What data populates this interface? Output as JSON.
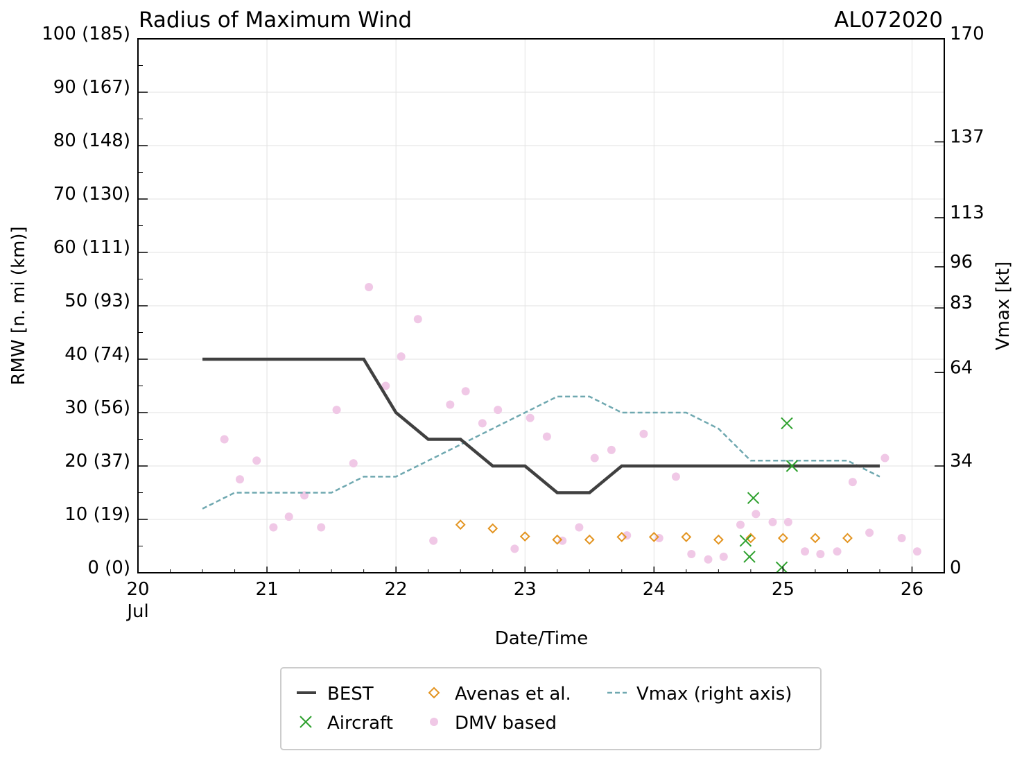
{
  "chart_data": {
    "type": "line",
    "title": "Radius of Maximum Wind",
    "storm_id": "AL072020",
    "xlabel": "Date/Time",
    "ylabel": "RMW [n. mi (km)]",
    "y2label": "Vmax [kt]",
    "xlim": [
      20,
      26.25
    ],
    "ylim": [
      0,
      100
    ],
    "x_ticks": [
      20,
      21,
      22,
      23,
      24,
      25,
      26
    ],
    "x_tick_labels": [
      "20",
      "21",
      "22",
      "23",
      "24",
      "25",
      "26"
    ],
    "x_sublabel": "Jul",
    "y_ticks": [
      0,
      10,
      20,
      30,
      40,
      50,
      60,
      70,
      80,
      90,
      100
    ],
    "y_tick_labels": [
      "0 (0)",
      "10 (19)",
      "20 (37)",
      "30 (56)",
      "40 (74)",
      "50 (93)",
      "60 (111)",
      "70 (130)",
      "80 (148)",
      "90 (167)",
      "100 (185)"
    ],
    "y2_ticks": [
      0,
      34,
      64,
      83,
      96,
      113,
      137,
      170
    ],
    "y2_tick_labels": [
      "0",
      "34",
      "64",
      "83",
      "96",
      "113",
      "137",
      "170"
    ],
    "y2_positions": [
      0,
      20,
      37.5,
      49.6,
      57.3,
      66.5,
      80.7,
      100
    ],
    "grid": true,
    "legend_position": "bottom-center",
    "legend": [
      "BEST",
      "Aircraft",
      "Avenas et al.",
      "DMV based",
      "Vmax (right axis)"
    ],
    "series": [
      {
        "name": "BEST",
        "kind": "line",
        "color": "#404040",
        "x": [
          20.5,
          20.75,
          21.0,
          21.25,
          21.5,
          21.75,
          22.0,
          22.25,
          22.5,
          22.75,
          23.0,
          23.25,
          23.5,
          23.75,
          24.0,
          24.25,
          24.5,
          24.75,
          25.0,
          25.25,
          25.5,
          25.75
        ],
        "y": [
          40,
          40,
          40,
          40,
          40,
          40,
          30,
          25,
          25,
          20,
          20,
          15,
          15,
          20,
          20,
          20,
          20,
          20,
          20,
          20,
          20,
          20
        ]
      },
      {
        "name": "Vmax (right axis)",
        "kind": "dashed-line",
        "color": "#6fa8b0",
        "x": [
          20.5,
          20.75,
          21.0,
          21.25,
          21.5,
          21.75,
          22.0,
          22.25,
          22.5,
          22.75,
          23.0,
          23.25,
          23.5,
          23.75,
          24.0,
          24.25,
          24.5,
          24.75,
          25.0,
          25.25,
          25.5,
          25.75
        ],
        "y": [
          12,
          15,
          15,
          15,
          15,
          18,
          18,
          21,
          24,
          27,
          30,
          33,
          33,
          30,
          30,
          30,
          27,
          21,
          21,
          21,
          21,
          18
        ]
      },
      {
        "name": "Aircraft",
        "kind": "x-marker",
        "color": "#2ca02c",
        "x": [
          24.71,
          24.74,
          24.77,
          24.99,
          25.03,
          25.07
        ],
        "y": [
          6,
          3,
          14,
          1,
          28,
          20
        ]
      },
      {
        "name": "Avenas et al.",
        "kind": "diamond-marker",
        "color": "#e39420",
        "x": [
          22.5,
          22.75,
          23.0,
          23.25,
          23.5,
          23.75,
          24.0,
          24.25,
          24.5,
          24.75,
          25.0,
          25.25,
          25.5
        ],
        "y": [
          9,
          8.3,
          6.8,
          6.2,
          6.2,
          6.7,
          6.7,
          6.7,
          6.2,
          6.5,
          6.5,
          6.5,
          6.5
        ]
      },
      {
        "name": "DMV based",
        "kind": "dot-marker",
        "color": "#f0c8e6",
        "x": [
          20.67,
          20.79,
          20.92,
          21.05,
          21.17,
          21.29,
          21.42,
          21.54,
          21.67,
          21.79,
          21.92,
          22.04,
          22.17,
          22.29,
          22.42,
          22.54,
          22.67,
          22.79,
          22.92,
          23.04,
          23.17,
          23.29,
          23.42,
          23.54,
          23.67,
          23.79,
          23.92,
          24.04,
          24.17,
          24.29,
          24.42,
          24.54,
          24.67,
          24.79,
          24.92,
          25.04,
          25.17,
          25.29,
          25.42,
          25.54,
          25.67,
          25.79,
          25.92,
          26.04
        ],
        "y": [
          25,
          17.5,
          21,
          8.5,
          10.5,
          14.5,
          8.5,
          30.5,
          20.5,
          53.5,
          35,
          40.5,
          47.5,
          6,
          31.5,
          34,
          28,
          30.5,
          4.5,
          29,
          25.5,
          6,
          8.5,
          21.5,
          23,
          7,
          26,
          6.5,
          18,
          3.5,
          2.5,
          3,
          9,
          11,
          9.5,
          9.5,
          4,
          3.5,
          4,
          17,
          7.5,
          21.5,
          6.5,
          4
        ]
      }
    ]
  }
}
